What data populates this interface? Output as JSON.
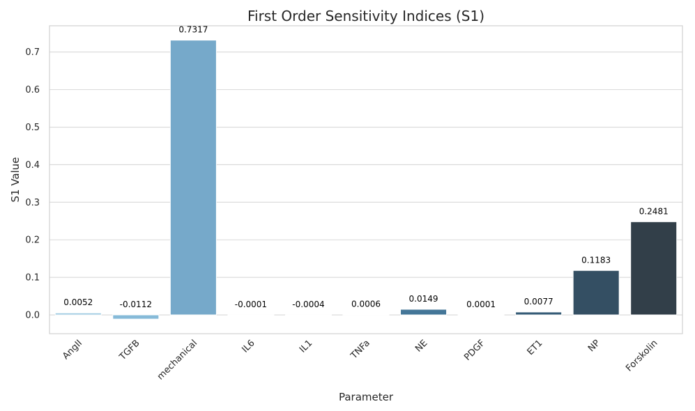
{
  "chart_data": {
    "type": "bar",
    "title": "First Order Sensitivity Indices (S1)",
    "xlabel": "Parameter",
    "ylabel": "S1 Value",
    "ylim": [
      -0.05,
      0.77
    ],
    "yticks": [
      0.0,
      0.1,
      0.2,
      0.3,
      0.4,
      0.5,
      0.6,
      0.7
    ],
    "ytick_labels": [
      "0.0",
      "0.1",
      "0.2",
      "0.3",
      "0.4",
      "0.5",
      "0.6",
      "0.7"
    ],
    "grid": "horizontal",
    "categories": [
      "AngII",
      "TGFB",
      "mechanical",
      "IL6",
      "IL1",
      "TNFa",
      "NE",
      "PDGF",
      "ET1",
      "NP",
      "Forskolin"
    ],
    "values": [
      0.0052,
      -0.0112,
      0.7317,
      -0.0001,
      -0.0004,
      0.0006,
      0.0149,
      0.0001,
      0.0077,
      0.1183,
      0.2481
    ],
    "value_labels": [
      "0.0052",
      "-0.0112",
      "0.7317",
      "-0.0001",
      "-0.0004",
      "0.0006",
      "0.0149",
      "0.0001",
      "0.0077",
      "0.1183",
      "0.2481"
    ],
    "colors": [
      "#9ccae1",
      "#86bad8",
      "#76a9ca",
      "#689ebf",
      "#5a8fb3",
      "#4e83a6",
      "#447698",
      "#3b6888",
      "#365c77",
      "#344f63",
      "#323f49"
    ]
  }
}
